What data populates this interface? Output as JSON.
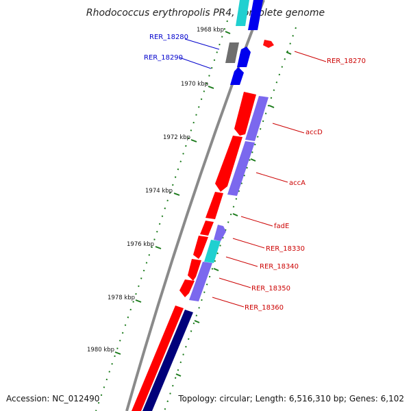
{
  "title": "Rhodococcus erythropolis PR4, complete genome",
  "accession": "Accession: NC_012490",
  "topology": "Topology: circular; Length: 6,516,310 bp; Genes: 6,102",
  "colors": {
    "backbone": "#888888",
    "red_gene": "#ff0000",
    "purple_gene": "#7b68ee",
    "cyan_gene": "#20c8c8",
    "blue_gene": "#0000ff",
    "navy_gene": "#000080",
    "gray_gene": "#707070",
    "tick": "#006400",
    "label_red": "#cc0000",
    "label_blue": "#0000cc"
  },
  "kbp_ticks": [
    "1968 kbp",
    "1970 kbp",
    "1972 kbp",
    "1974 kbp",
    "1976 kbp",
    "1978 kbp",
    "1980 kbp"
  ],
  "gene_labels": [
    {
      "text": "RER_18280",
      "color": "blue"
    },
    {
      "text": "RER_18290",
      "color": "blue"
    },
    {
      "text": "RER_18270",
      "color": "red"
    },
    {
      "text": "accD",
      "color": "red"
    },
    {
      "text": "accA",
      "color": "red"
    },
    {
      "text": "fadE",
      "color": "red"
    },
    {
      "text": "RER_18330",
      "color": "red"
    },
    {
      "text": "RER_18340",
      "color": "red"
    },
    {
      "text": "RER_18350",
      "color": "red"
    },
    {
      "text": "RER_18360",
      "color": "red"
    }
  ]
}
